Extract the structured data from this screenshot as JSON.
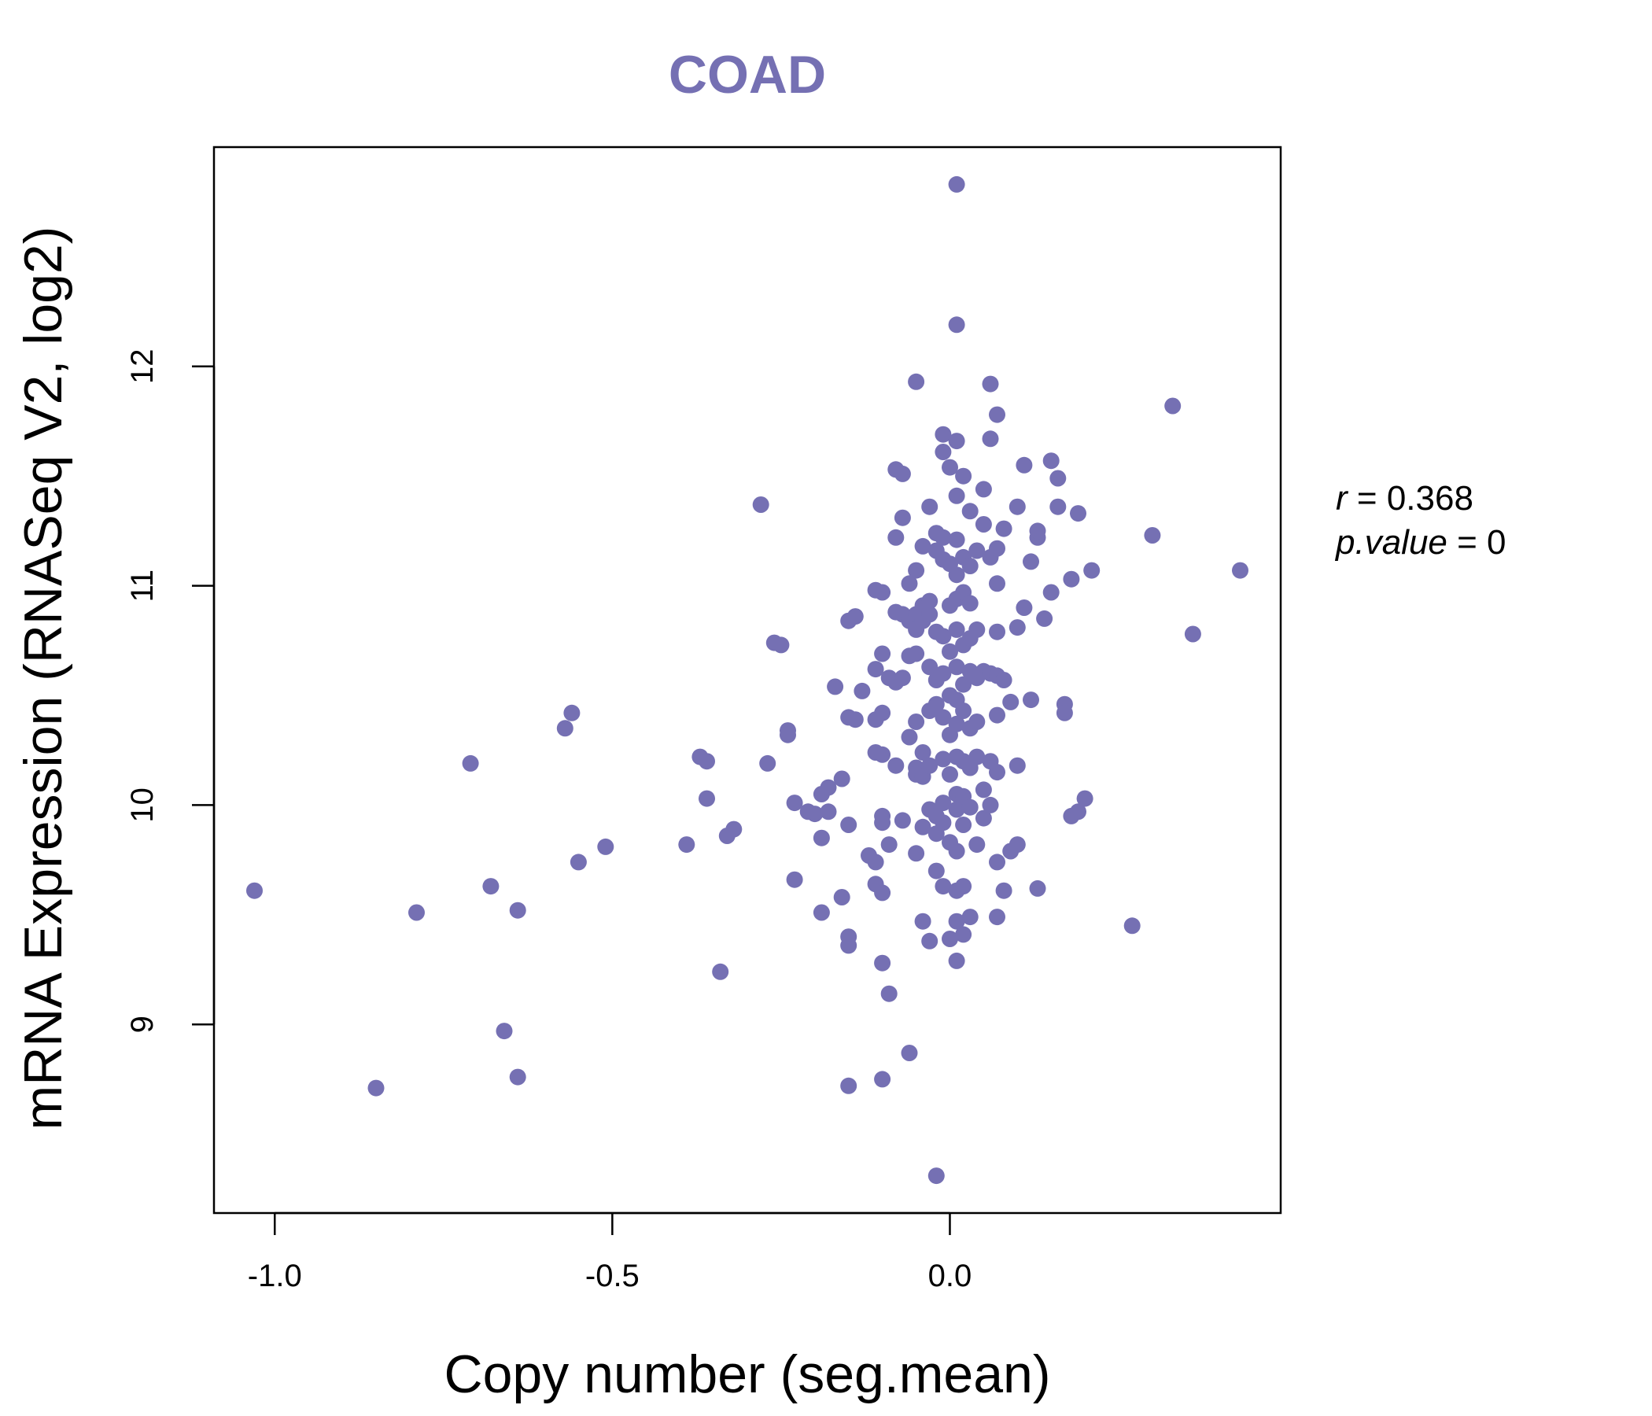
{
  "chart_data": {
    "type": "scatter",
    "title": "COAD",
    "xlabel": "Copy number (seg.mean)",
    "ylabel": "mRNA Expression (RNASeq V2, log2)",
    "xlim": [
      -1.09,
      0.49
    ],
    "ylim": [
      8.14,
      13.0
    ],
    "x_ticks": [
      -1.0,
      -0.5,
      0.0
    ],
    "x_tick_labels": [
      "-1.0",
      "-0.5",
      "0.0"
    ],
    "y_ticks": [
      9,
      10,
      11,
      12
    ],
    "y_tick_labels": [
      "9",
      "10",
      "11",
      "12"
    ],
    "point_color": "#7570b3",
    "title_color": "#7570b3",
    "stats": {
      "r_label": "r",
      "r_value": "0.368",
      "p_label": "p.value",
      "p_value": "0"
    },
    "points": [
      [
        -1.03,
        9.61
      ],
      [
        -0.85,
        8.71
      ],
      [
        -0.79,
        9.51
      ],
      [
        -0.71,
        10.19
      ],
      [
        -0.68,
        9.63
      ],
      [
        -0.66,
        8.97
      ],
      [
        -0.64,
        8.76
      ],
      [
        -0.64,
        9.52
      ],
      [
        -0.57,
        10.35
      ],
      [
        -0.56,
        10.42
      ],
      [
        -0.55,
        9.74
      ],
      [
        -0.51,
        9.81
      ],
      [
        -0.39,
        9.82
      ],
      [
        -0.37,
        10.22
      ],
      [
        -0.36,
        10.03
      ],
      [
        -0.36,
        10.2
      ],
      [
        -0.34,
        9.24
      ],
      [
        -0.33,
        9.86
      ],
      [
        -0.32,
        9.89
      ],
      [
        -0.28,
        11.37
      ],
      [
        -0.27,
        10.19
      ],
      [
        -0.26,
        10.74
      ],
      [
        -0.25,
        10.73
      ],
      [
        -0.24,
        10.34
      ],
      [
        -0.24,
        10.32
      ],
      [
        -0.23,
        10.01
      ],
      [
        -0.23,
        9.66
      ],
      [
        -0.21,
        9.97
      ],
      [
        -0.2,
        9.96
      ],
      [
        -0.19,
        10.05
      ],
      [
        -0.19,
        9.85
      ],
      [
        -0.19,
        9.51
      ],
      [
        -0.18,
        10.08
      ],
      [
        -0.18,
        9.97
      ],
      [
        -0.17,
        10.54
      ],
      [
        -0.16,
        10.12
      ],
      [
        -0.16,
        9.58
      ],
      [
        -0.15,
        10.84
      ],
      [
        -0.15,
        10.4
      ],
      [
        -0.15,
        9.91
      ],
      [
        -0.15,
        9.4
      ],
      [
        -0.15,
        9.36
      ],
      [
        -0.15,
        8.72
      ],
      [
        -0.14,
        10.86
      ],
      [
        -0.14,
        10.39
      ],
      [
        -0.13,
        10.52
      ],
      [
        -0.12,
        9.77
      ],
      [
        -0.11,
        10.98
      ],
      [
        -0.11,
        10.62
      ],
      [
        -0.11,
        10.39
      ],
      [
        -0.11,
        10.24
      ],
      [
        -0.11,
        9.74
      ],
      [
        -0.11,
        9.64
      ],
      [
        -0.1,
        10.97
      ],
      [
        -0.1,
        10.69
      ],
      [
        -0.1,
        10.42
      ],
      [
        -0.1,
        10.23
      ],
      [
        -0.1,
        9.95
      ],
      [
        -0.1,
        9.92
      ],
      [
        -0.1,
        9.6
      ],
      [
        -0.1,
        9.28
      ],
      [
        -0.1,
        8.75
      ],
      [
        -0.09,
        10.58
      ],
      [
        -0.09,
        9.82
      ],
      [
        -0.09,
        9.14
      ],
      [
        -0.08,
        11.53
      ],
      [
        -0.08,
        11.22
      ],
      [
        -0.08,
        10.88
      ],
      [
        -0.08,
        10.56
      ],
      [
        -0.08,
        10.18
      ],
      [
        -0.07,
        11.51
      ],
      [
        -0.07,
        11.31
      ],
      [
        -0.07,
        10.87
      ],
      [
        -0.07,
        10.58
      ],
      [
        -0.07,
        9.93
      ],
      [
        -0.06,
        11.01
      ],
      [
        -0.06,
        10.84
      ],
      [
        -0.06,
        10.68
      ],
      [
        -0.06,
        10.31
      ],
      [
        -0.06,
        8.87
      ],
      [
        -0.05,
        11.93
      ],
      [
        -0.05,
        11.07
      ],
      [
        -0.05,
        10.87
      ],
      [
        -0.05,
        10.8
      ],
      [
        -0.05,
        10.69
      ],
      [
        -0.05,
        10.38
      ],
      [
        -0.05,
        10.17
      ],
      [
        -0.05,
        10.14
      ],
      [
        -0.05,
        9.78
      ],
      [
        -0.04,
        11.18
      ],
      [
        -0.04,
        10.91
      ],
      [
        -0.04,
        10.84
      ],
      [
        -0.04,
        10.24
      ],
      [
        -0.04,
        10.13
      ],
      [
        -0.04,
        9.9
      ],
      [
        -0.04,
        9.47
      ],
      [
        -0.03,
        11.36
      ],
      [
        -0.03,
        10.93
      ],
      [
        -0.03,
        10.87
      ],
      [
        -0.03,
        10.63
      ],
      [
        -0.03,
        10.43
      ],
      [
        -0.03,
        10.18
      ],
      [
        -0.03,
        9.98
      ],
      [
        -0.03,
        9.38
      ],
      [
        -0.02,
        11.24
      ],
      [
        -0.02,
        11.16
      ],
      [
        -0.02,
        10.79
      ],
      [
        -0.02,
        10.57
      ],
      [
        -0.02,
        10.46
      ],
      [
        -0.02,
        9.95
      ],
      [
        -0.02,
        9.87
      ],
      [
        -0.02,
        9.7
      ],
      [
        -0.02,
        8.31
      ],
      [
        -0.01,
        11.69
      ],
      [
        -0.01,
        11.61
      ],
      [
        -0.01,
        11.22
      ],
      [
        -0.01,
        11.12
      ],
      [
        -0.01,
        10.77
      ],
      [
        -0.01,
        10.6
      ],
      [
        -0.01,
        10.4
      ],
      [
        -0.01,
        10.21
      ],
      [
        -0.01,
        10.01
      ],
      [
        -0.01,
        9.92
      ],
      [
        -0.01,
        9.63
      ],
      [
        0.0,
        11.54
      ],
      [
        0.0,
        11.1
      ],
      [
        0.0,
        10.91
      ],
      [
        0.0,
        10.7
      ],
      [
        0.0,
        10.5
      ],
      [
        0.0,
        10.32
      ],
      [
        0.0,
        10.14
      ],
      [
        0.0,
        9.83
      ],
      [
        0.0,
        9.39
      ],
      [
        0.01,
        12.83
      ],
      [
        0.01,
        12.19
      ],
      [
        0.01,
        11.66
      ],
      [
        0.01,
        11.41
      ],
      [
        0.01,
        11.21
      ],
      [
        0.01,
        11.05
      ],
      [
        0.01,
        10.94
      ],
      [
        0.01,
        10.8
      ],
      [
        0.01,
        10.63
      ],
      [
        0.01,
        10.48
      ],
      [
        0.01,
        10.37
      ],
      [
        0.01,
        10.22
      ],
      [
        0.01,
        10.05
      ],
      [
        0.01,
        9.98
      ],
      [
        0.01,
        9.79
      ],
      [
        0.01,
        9.61
      ],
      [
        0.01,
        9.47
      ],
      [
        0.01,
        9.29
      ],
      [
        0.02,
        11.5
      ],
      [
        0.02,
        11.13
      ],
      [
        0.02,
        10.97
      ],
      [
        0.02,
        10.73
      ],
      [
        0.02,
        10.55
      ],
      [
        0.02,
        10.43
      ],
      [
        0.02,
        10.2
      ],
      [
        0.02,
        10.04
      ],
      [
        0.02,
        9.91
      ],
      [
        0.02,
        9.63
      ],
      [
        0.02,
        9.41
      ],
      [
        0.03,
        11.34
      ],
      [
        0.03,
        11.09
      ],
      [
        0.03,
        10.92
      ],
      [
        0.03,
        10.76
      ],
      [
        0.03,
        10.61
      ],
      [
        0.03,
        10.35
      ],
      [
        0.03,
        10.17
      ],
      [
        0.03,
        9.99
      ],
      [
        0.03,
        9.49
      ],
      [
        0.04,
        11.16
      ],
      [
        0.04,
        10.8
      ],
      [
        0.04,
        10.58
      ],
      [
        0.04,
        10.38
      ],
      [
        0.04,
        10.22
      ],
      [
        0.04,
        9.82
      ],
      [
        0.05,
        11.44
      ],
      [
        0.05,
        11.28
      ],
      [
        0.05,
        10.61
      ],
      [
        0.05,
        10.07
      ],
      [
        0.05,
        9.94
      ],
      [
        0.06,
        11.92
      ],
      [
        0.06,
        11.67
      ],
      [
        0.06,
        11.13
      ],
      [
        0.06,
        10.6
      ],
      [
        0.06,
        10.2
      ],
      [
        0.06,
        10.0
      ],
      [
        0.07,
        11.78
      ],
      [
        0.07,
        11.17
      ],
      [
        0.07,
        11.01
      ],
      [
        0.07,
        10.79
      ],
      [
        0.07,
        10.59
      ],
      [
        0.07,
        10.41
      ],
      [
        0.07,
        10.15
      ],
      [
        0.07,
        9.74
      ],
      [
        0.07,
        9.49
      ],
      [
        0.08,
        11.26
      ],
      [
        0.08,
        10.57
      ],
      [
        0.08,
        9.61
      ],
      [
        0.09,
        10.47
      ],
      [
        0.09,
        9.79
      ],
      [
        0.1,
        11.36
      ],
      [
        0.1,
        10.81
      ],
      [
        0.1,
        10.18
      ],
      [
        0.1,
        9.82
      ],
      [
        0.11,
        11.55
      ],
      [
        0.11,
        10.9
      ],
      [
        0.12,
        11.11
      ],
      [
        0.12,
        10.48
      ],
      [
        0.13,
        11.22
      ],
      [
        0.13,
        11.25
      ],
      [
        0.13,
        9.62
      ],
      [
        0.14,
        10.85
      ],
      [
        0.15,
        11.57
      ],
      [
        0.15,
        10.97
      ],
      [
        0.16,
        11.49
      ],
      [
        0.16,
        11.36
      ],
      [
        0.17,
        10.46
      ],
      [
        0.17,
        10.42
      ],
      [
        0.18,
        11.03
      ],
      [
        0.18,
        9.95
      ],
      [
        0.19,
        11.33
      ],
      [
        0.19,
        9.97
      ],
      [
        0.2,
        10.03
      ],
      [
        0.21,
        11.07
      ],
      [
        0.27,
        9.45
      ],
      [
        0.3,
        11.23
      ],
      [
        0.33,
        11.82
      ],
      [
        0.36,
        10.78
      ],
      [
        0.43,
        11.07
      ]
    ]
  }
}
